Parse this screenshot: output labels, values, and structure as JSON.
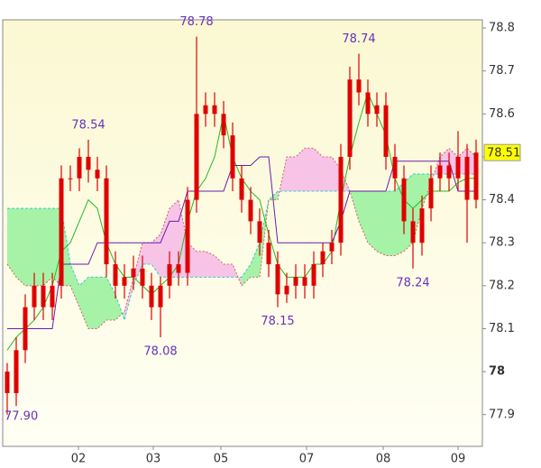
{
  "chart_data": {
    "type": "candlestick",
    "x": [
      0,
      1,
      2,
      3,
      4,
      5,
      6,
      7,
      8,
      9,
      10,
      11,
      12,
      13,
      14,
      15,
      16,
      17,
      18,
      19,
      20,
      21,
      22,
      23,
      24,
      25,
      26,
      27,
      28,
      29,
      30,
      31,
      32,
      33,
      34,
      35,
      36,
      37,
      38,
      39,
      40,
      41,
      42,
      43,
      44,
      45,
      46,
      47,
      48,
      49,
      50,
      51,
      52
    ],
    "open": [
      78.0,
      77.95,
      78.05,
      78.15,
      78.2,
      78.15,
      78.2,
      78.45,
      78.45,
      78.5,
      78.47,
      78.45,
      78.25,
      78.2,
      78.22,
      78.24,
      78.2,
      78.15,
      78.2,
      78.25,
      78.23,
      78.4,
      78.6,
      78.62,
      78.6,
      78.55,
      78.45,
      78.4,
      78.35,
      78.3,
      78.25,
      78.18,
      78.2,
      78.22,
      78.2,
      78.25,
      78.28,
      78.3,
      78.5,
      78.68,
      78.65,
      78.6,
      78.62,
      78.5,
      78.45,
      78.35,
      78.3,
      78.38,
      78.45,
      78.48,
      78.45,
      78.5,
      78.4
    ],
    "high": [
      78.02,
      78.08,
      78.18,
      78.23,
      78.23,
      78.23,
      78.48,
      78.48,
      78.52,
      78.54,
      78.5,
      78.48,
      78.28,
      78.25,
      78.27,
      78.27,
      78.23,
      78.22,
      78.28,
      78.28,
      78.43,
      78.78,
      78.65,
      78.65,
      78.63,
      78.58,
      78.48,
      78.43,
      78.38,
      78.33,
      78.28,
      78.23,
      78.25,
      78.25,
      78.28,
      78.3,
      78.33,
      78.53,
      78.71,
      78.74,
      78.68,
      78.65,
      78.65,
      78.53,
      78.48,
      78.38,
      78.41,
      78.48,
      78.51,
      78.51,
      78.56,
      78.53,
      78.54
    ],
    "low": [
      77.9,
      77.92,
      78.02,
      78.12,
      78.12,
      78.12,
      78.17,
      78.42,
      78.42,
      78.44,
      78.42,
      78.22,
      78.17,
      78.17,
      78.19,
      78.17,
      78.12,
      78.08,
      78.17,
      78.2,
      78.2,
      78.37,
      78.57,
      78.57,
      78.52,
      78.42,
      78.37,
      78.32,
      78.27,
      78.22,
      78.15,
      78.16,
      78.17,
      78.17,
      78.17,
      78.22,
      78.25,
      78.27,
      78.47,
      78.62,
      78.57,
      78.57,
      78.47,
      78.42,
      78.32,
      78.24,
      78.27,
      78.35,
      78.42,
      78.42,
      78.42,
      78.3,
      78.38
    ],
    "close": [
      77.95,
      78.05,
      78.15,
      78.2,
      78.15,
      78.2,
      78.45,
      78.45,
      78.5,
      78.47,
      78.45,
      78.25,
      78.2,
      78.22,
      78.24,
      78.2,
      78.15,
      78.2,
      78.25,
      78.23,
      78.4,
      78.6,
      78.62,
      78.6,
      78.55,
      78.45,
      78.4,
      78.35,
      78.3,
      78.25,
      78.18,
      78.2,
      78.22,
      78.2,
      78.25,
      78.28,
      78.3,
      78.5,
      78.68,
      78.65,
      78.6,
      78.62,
      78.5,
      78.45,
      78.35,
      78.3,
      78.38,
      78.45,
      78.48,
      78.45,
      78.5,
      78.4,
      78.51
    ],
    "candle_color": "#e00000",
    "tenkan": {
      "color": "#22bb22",
      "values": [
        78.05,
        78.08,
        78.1,
        78.12,
        78.15,
        78.2,
        78.28,
        78.3,
        78.35,
        78.4,
        78.38,
        78.3,
        78.25,
        78.22,
        78.22,
        78.2,
        78.18,
        78.2,
        78.22,
        78.25,
        78.35,
        78.42,
        78.45,
        78.5,
        78.6,
        78.5,
        78.45,
        78.42,
        78.4,
        78.32,
        78.25,
        78.22,
        78.22,
        78.22,
        78.25,
        78.25,
        78.28,
        78.4,
        78.5,
        78.58,
        78.65,
        78.6,
        78.55,
        78.45,
        78.4,
        78.38,
        78.4,
        78.42,
        78.42,
        78.42,
        78.44,
        78.45,
        78.45
      ]
    },
    "kijun": {
      "color": "#6a1ea8",
      "values": [
        78.1,
        78.1,
        78.1,
        78.1,
        78.1,
        78.1,
        78.25,
        78.25,
        78.25,
        78.25,
        78.3,
        78.3,
        78.3,
        78.3,
        78.3,
        78.3,
        78.3,
        78.3,
        78.35,
        78.35,
        78.42,
        78.42,
        78.42,
        78.42,
        78.42,
        78.48,
        78.48,
        78.48,
        78.5,
        78.5,
        78.3,
        78.3,
        78.3,
        78.3,
        78.3,
        78.3,
        78.3,
        78.35,
        78.42,
        78.42,
        78.42,
        78.42,
        78.42,
        78.49,
        78.49,
        78.49,
        78.49,
        78.49,
        78.49,
        78.49,
        78.42,
        78.42,
        78.42
      ]
    },
    "span_a": {
      "color": "#33cccc",
      "values": [
        78.38,
        78.38,
        78.38,
        78.38,
        78.38,
        78.38,
        78.38,
        78.25,
        78.2,
        78.22,
        78.22,
        78.22,
        78.18,
        78.12,
        78.2,
        78.25,
        78.25,
        78.22,
        78.22,
        78.22,
        78.22,
        78.22,
        78.22,
        78.22,
        78.22,
        78.22,
        78.22,
        78.25,
        78.3,
        78.4,
        78.42,
        78.42,
        78.42,
        78.42,
        78.42,
        78.42,
        78.42,
        78.42,
        78.42,
        78.42,
        78.42,
        78.42,
        78.42,
        78.42,
        78.44,
        78.46,
        78.46,
        78.46,
        78.46,
        78.46,
        78.46,
        78.46,
        78.46
      ]
    },
    "span_b": {
      "color": "#cc6666",
      "values": [
        78.25,
        78.22,
        78.2,
        78.2,
        78.2,
        78.22,
        78.2,
        78.2,
        78.15,
        78.1,
        78.1,
        78.12,
        78.12,
        78.14,
        78.22,
        78.3,
        78.3,
        78.32,
        78.38,
        78.4,
        78.3,
        78.28,
        78.28,
        78.27,
        78.25,
        78.25,
        78.2,
        78.22,
        78.22,
        78.4,
        78.4,
        78.5,
        78.5,
        78.52,
        78.52,
        78.5,
        78.5,
        78.47,
        78.42,
        78.35,
        78.3,
        78.28,
        78.27,
        78.27,
        78.28,
        78.3,
        78.38,
        78.44,
        78.5,
        78.52,
        78.5,
        78.52,
        78.5
      ]
    },
    "cloud_up_color": "#a6f2a6",
    "cloud_down_color": "#f7c4e8",
    "xlim": [
      -0.5,
      52.7
    ],
    "xticks": [
      {
        "value": 7.9,
        "label": "02"
      },
      {
        "value": 16.2,
        "label": "03"
      },
      {
        "value": 23.7,
        "label": "05"
      },
      {
        "value": 33.2,
        "label": "07"
      },
      {
        "value": 41.7,
        "label": "08"
      },
      {
        "value": 50,
        "label": "09"
      }
    ],
    "ylim": [
      77.826,
      78.819
    ],
    "yticks": [
      77.9,
      78,
      78.1,
      78.2,
      78.3,
      78.4,
      78.5,
      78.6,
      78.7,
      78.8
    ],
    "last_price": 78.51,
    "annotations": [
      {
        "label": "78.54",
        "x": 9,
        "value": 78.54,
        "position": "above"
      },
      {
        "label": "78.08",
        "x": 17,
        "value": 78.08,
        "position": "below"
      },
      {
        "label": "78.78",
        "x": 21,
        "value": 78.78,
        "position": "above"
      },
      {
        "label": "78.15",
        "x": 30,
        "value": 78.15,
        "position": "below"
      },
      {
        "label": "78.74",
        "x": 39,
        "value": 78.74,
        "position": "above"
      },
      {
        "label": "78.24",
        "x": 45,
        "value": 78.24,
        "position": "below"
      },
      {
        "label": "77.90",
        "x": 0,
        "value": 77.9,
        "position": "right"
      }
    ]
  }
}
